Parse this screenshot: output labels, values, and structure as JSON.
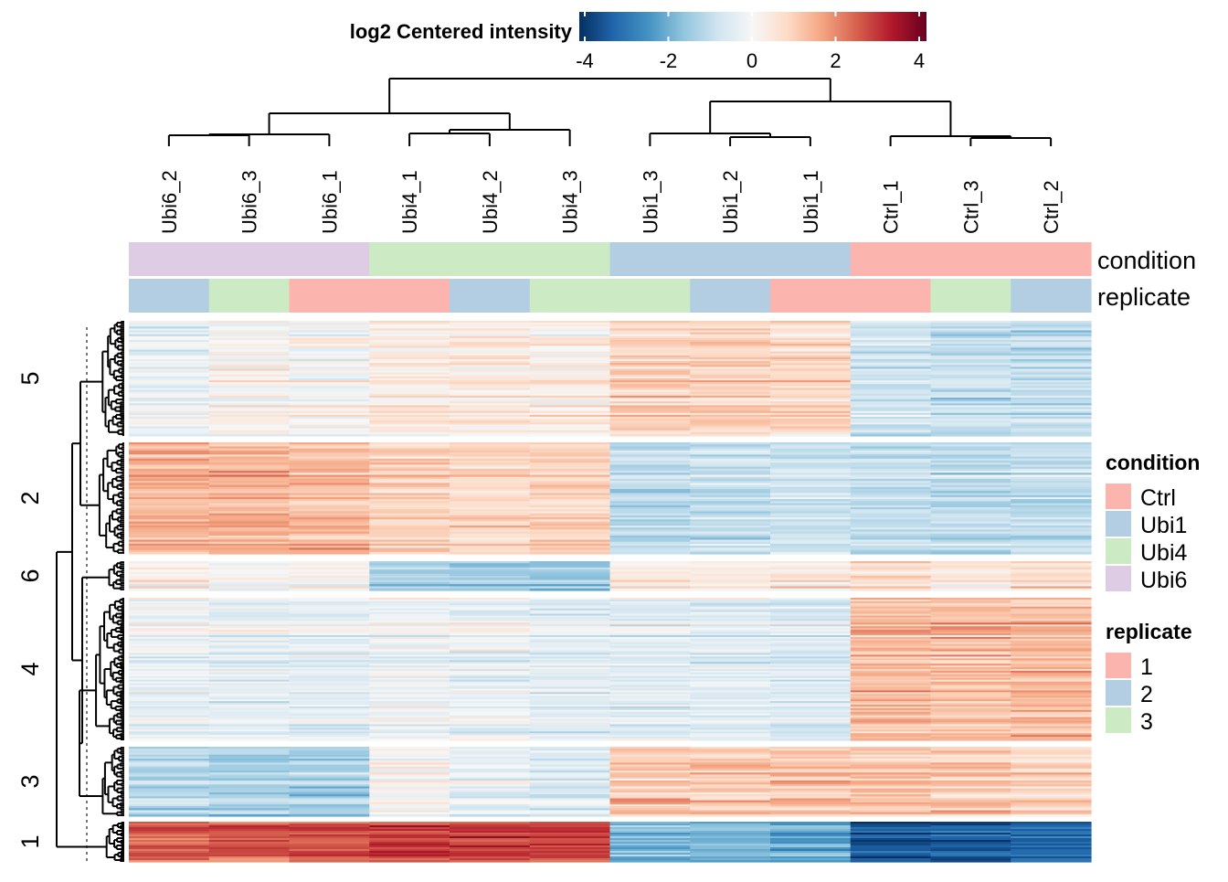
{
  "chart_data": {
    "type": "heatmap",
    "title": "",
    "colorbar": {
      "title": "log2 Centered intensity",
      "range": [
        -4,
        4
      ],
      "ticks": [
        "-4",
        "-2",
        "0",
        "2",
        "4"
      ],
      "tick_values": [
        -4,
        -2,
        0,
        2,
        4
      ],
      "colors": [
        "#053061",
        "#2166ac",
        "#4393c3",
        "#92c5de",
        "#d1e5f0",
        "#f7f7f7",
        "#fddbc7",
        "#f4a582",
        "#d6604d",
        "#b2182b",
        "#67001f"
      ]
    },
    "columns": [
      "Ubi6_2",
      "Ubi6_3",
      "Ubi6_1",
      "Ubi4_1",
      "Ubi4_2",
      "Ubi4_3",
      "Ubi1_3",
      "Ubi1_2",
      "Ubi1_1",
      "Ctrl_1",
      "Ctrl_3",
      "Ctrl_2"
    ],
    "annotations": [
      {
        "name": "condition",
        "values": [
          "Ubi6",
          "Ubi6",
          "Ubi6",
          "Ubi4",
          "Ubi4",
          "Ubi4",
          "Ubi1",
          "Ubi1",
          "Ubi1",
          "Ctrl",
          "Ctrl",
          "Ctrl"
        ]
      },
      {
        "name": "replicate",
        "values": [
          "2",
          "3",
          "1",
          "1",
          "2",
          "3",
          "3",
          "2",
          "1",
          "1",
          "3",
          "2"
        ]
      }
    ],
    "legends": [
      {
        "title": "condition",
        "items": [
          {
            "label": "Ctrl",
            "color": "#fbb4ae"
          },
          {
            "label": "Ubi1",
            "color": "#b3cde3"
          },
          {
            "label": "Ubi4",
            "color": "#ccebc5"
          },
          {
            "label": "Ubi6",
            "color": "#decbe4"
          }
        ]
      },
      {
        "title": "replicate",
        "items": [
          {
            "label": "1",
            "color": "#fbb4ae"
          },
          {
            "label": "2",
            "color": "#b3cde3"
          },
          {
            "label": "3",
            "color": "#ccebc5"
          }
        ]
      }
    ],
    "row_clusters": [
      {
        "label": "5",
        "n_rows": 60,
        "column_means": [
          -0.2,
          0.1,
          0.0,
          0.3,
          0.4,
          0.3,
          0.9,
          0.9,
          0.8,
          -0.8,
          -0.9,
          -1.0
        ]
      },
      {
        "label": "2",
        "n_rows": 55,
        "column_means": [
          1.5,
          1.4,
          1.3,
          0.9,
          0.8,
          0.9,
          -1.0,
          -0.9,
          -0.8,
          -1.0,
          -1.0,
          -1.0
        ]
      },
      {
        "label": "6",
        "n_rows": 14,
        "column_means": [
          0.3,
          0.2,
          0.3,
          -1.3,
          -1.3,
          -1.5,
          0.5,
          0.4,
          0.4,
          0.7,
          0.6,
          0.7
        ]
      },
      {
        "label": "4",
        "n_rows": 80,
        "column_means": [
          -0.2,
          -0.3,
          -0.3,
          -0.1,
          -0.2,
          -0.4,
          -0.5,
          -0.4,
          -0.5,
          1.3,
          1.2,
          1.3
        ]
      },
      {
        "label": "3",
        "n_rows": 35,
        "column_means": [
          -1.2,
          -1.3,
          -1.4,
          0.1,
          -0.4,
          -0.6,
          1.1,
          1.0,
          1.1,
          1.1,
          1.0,
          0.8
        ]
      },
      {
        "label": "1",
        "n_rows": 22,
        "column_means": [
          2.4,
          2.4,
          2.5,
          2.8,
          2.7,
          2.7,
          -1.9,
          -1.9,
          -2.1,
          -3.4,
          -3.4,
          -3.2
        ]
      }
    ],
    "column_dendrogram": "((Ubi6,Ubi4),(Ubi1,Ctrl))",
    "xlabel": "",
    "ylabel": ""
  }
}
